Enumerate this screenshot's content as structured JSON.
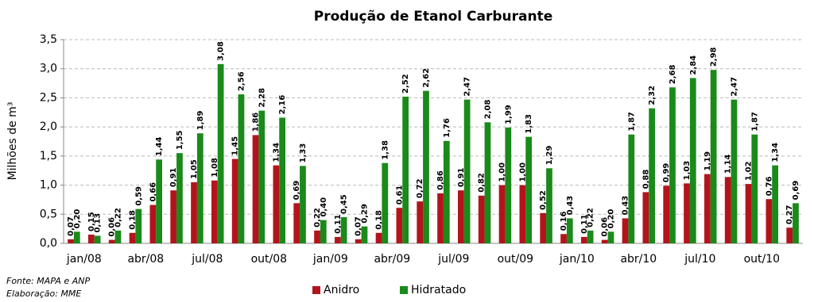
{
  "chart_data": {
    "type": "bar",
    "title": "Produção de Etanol Carburante",
    "y_label": "Milhões de m³",
    "categories": [
      "jan/08",
      null,
      null,
      "abr/08",
      null,
      null,
      "jul/08",
      null,
      null,
      "out/08",
      null,
      null,
      "jan/09",
      null,
      null,
      "abr/09",
      null,
      null,
      "jul/09",
      null,
      null,
      "out/09",
      null,
      null,
      "jan/10",
      null,
      null,
      "abr/10",
      null,
      null,
      "jul/10",
      null,
      null,
      "out/10",
      null,
      null
    ],
    "series": [
      {
        "name": "Anidro",
        "color": "#b3141c",
        "values": [
          0.07,
          0.15,
          0.06,
          0.18,
          0.66,
          0.91,
          1.05,
          1.08,
          1.45,
          1.86,
          1.34,
          0.69,
          0.22,
          0.11,
          0.07,
          0.18,
          0.61,
          0.72,
          0.86,
          0.91,
          0.82,
          1.0,
          1.0,
          0.52,
          0.16,
          0.11,
          0.06,
          0.43,
          0.88,
          0.99,
          1.03,
          1.19,
          1.14,
          1.02,
          0.76,
          0.27
        ],
        "value_labels": [
          "0,07",
          "0,15",
          "0,06",
          "0,18",
          "0,66",
          "0,91",
          "1,05",
          "1,08",
          "1,45",
          "1,86",
          "1,34",
          "0,69",
          "0,22",
          "0,11",
          "0,07",
          "0,18",
          "0,61",
          "0,72",
          "0,86",
          "0,91",
          "0,82",
          "1,00",
          "1,00",
          "0,52",
          "0,16",
          "0,11",
          "0,06",
          "0,43",
          "0,88",
          "0,99",
          "1,03",
          "1,19",
          "1,14",
          "1,02",
          "0,76",
          "0,27"
        ]
      },
      {
        "name": "Hidratado",
        "color": "#1a8a1a",
        "values": [
          0.2,
          0.13,
          0.22,
          0.59,
          1.44,
          1.55,
          1.89,
          3.08,
          2.56,
          2.28,
          2.16,
          1.33,
          0.4,
          0.45,
          0.29,
          1.38,
          2.52,
          2.62,
          1.76,
          2.47,
          2.08,
          1.99,
          1.83,
          1.29,
          0.43,
          0.22,
          0.2,
          1.87,
          2.32,
          2.68,
          2.84,
          2.98,
          2.47,
          1.87,
          1.34,
          0.69
        ],
        "value_labels": [
          "0,20",
          "0,13",
          "0,22",
          "0,59",
          "1,44",
          "1,55",
          "1,89",
          "3,08",
          "2,56",
          "2,28",
          "2,16",
          "1,33",
          "0,40",
          "0,45",
          "0,29",
          "1,38",
          "2,52",
          "2,62",
          "1,76",
          "2,47",
          "2,08",
          "1,99",
          "1,83",
          "1,29",
          "0,43",
          "0,22",
          "0,20",
          "1,87",
          "2,32",
          "2,68",
          "2,84",
          "2,98",
          "2,47",
          "1,87",
          "1,34",
          "0,69"
        ]
      }
    ],
    "ylim": [
      0,
      3.5
    ],
    "yticks": [
      {
        "value": 0,
        "label": "0,0"
      },
      {
        "value": 0.5,
        "label": "0,5"
      },
      {
        "value": 1,
        "label": "1,0"
      },
      {
        "value": 1.5,
        "label": "1,5"
      },
      {
        "value": 2,
        "label": "2,0"
      },
      {
        "value": 2.5,
        "label": "2,5"
      },
      {
        "value": 3,
        "label": "3,0"
      },
      {
        "value": 3.5,
        "label": "3,5"
      }
    ],
    "grid": true,
    "legend": "bottom",
    "notes": [
      "Fonte: MAPA e ANP",
      "Elaboração: MME"
    ]
  }
}
